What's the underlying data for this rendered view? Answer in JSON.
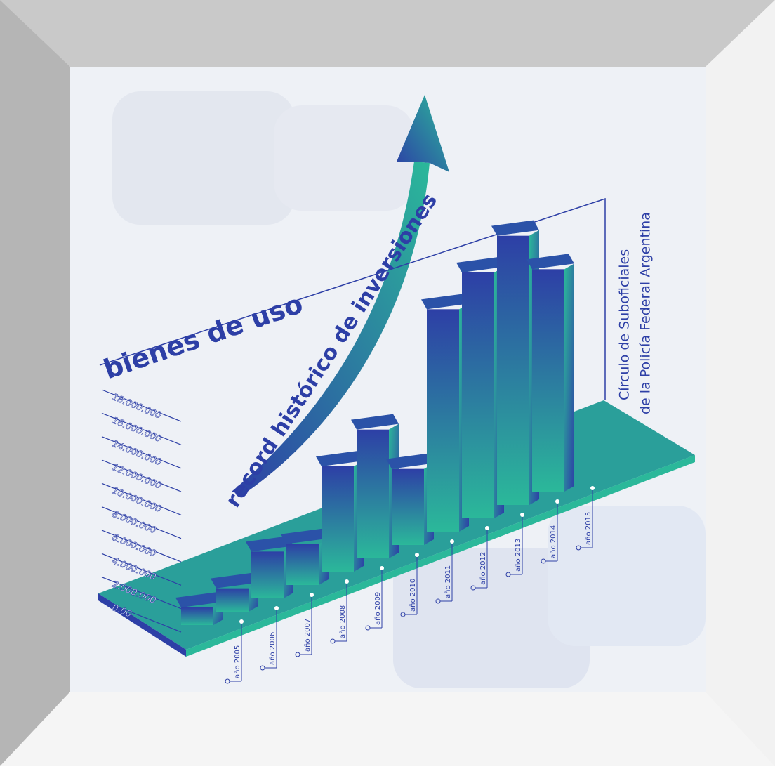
{
  "chart_data": {
    "type": "bar3d",
    "title": "bienes de uso",
    "subtitle": "record histórico de inversiones",
    "annotation": [
      "Círculo de Suboficiales",
      "de la  Policía Federal Argentina"
    ],
    "categories": [
      "año 2005",
      "año 2006",
      "año 2007",
      "año 2008",
      "año 2009",
      "año 2010",
      "año 2011",
      "año 2012",
      "año 2013",
      "año 2014",
      "año 2015"
    ],
    "values": [
      1500000,
      2000000,
      4000000,
      3500000,
      9000000,
      11000000,
      6500000,
      19000000,
      21000000,
      23000000,
      19000000
    ],
    "colors": [
      "#2d3fa6",
      "#2bb89a"
    ],
    "ylim": [
      0,
      24000000
    ],
    "yticks": [
      {
        "value": 0,
        "label": "0.00"
      },
      {
        "value": 2000000,
        "label": "2.000.000"
      },
      {
        "value": 4000000,
        "label": "4.000.000"
      },
      {
        "value": 6000000,
        "label": "6.000.000"
      },
      {
        "value": 8000000,
        "label": "8.000.000"
      },
      {
        "value": 10000000,
        "label": "10.000.000"
      },
      {
        "value": 12000000,
        "label": "12.000.000"
      },
      {
        "value": 14000000,
        "label": "14.000.000"
      },
      {
        "value": 16000000,
        "label": "16.000.000"
      },
      {
        "value": 18000000,
        "label": "18.000.000"
      }
    ]
  }
}
